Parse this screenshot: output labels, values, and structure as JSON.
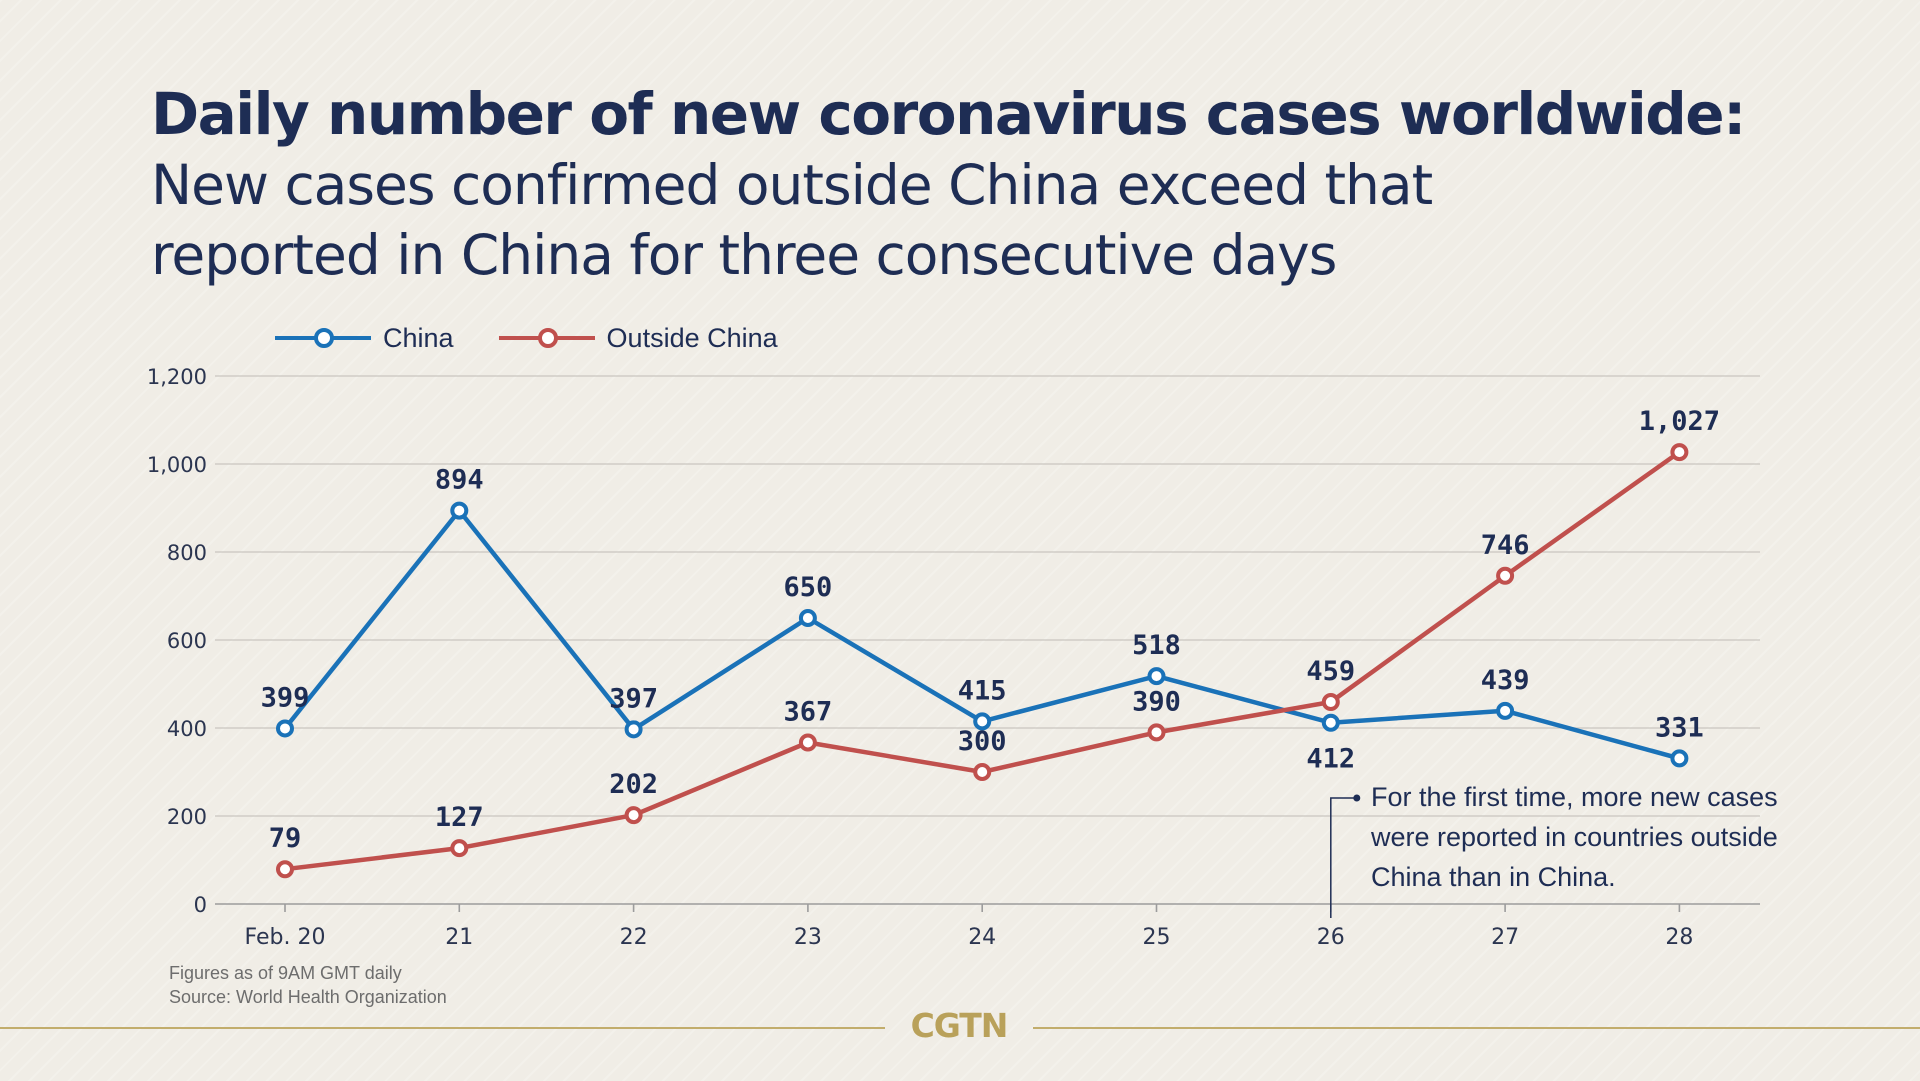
{
  "header": {
    "title": "Daily number of new coronavirus cases worldwide:",
    "subtitle": "New cases confirmed outside China exceed that reported in China for three consecutive days"
  },
  "legend": {
    "items": [
      {
        "label": "China",
        "color": "#1a72b8"
      },
      {
        "label": "Outside China",
        "color": "#c0504d"
      }
    ]
  },
  "annotation": {
    "text": "For the first time, more new cases were reported in countries outside China than in China."
  },
  "footnote": {
    "line1": "Figures as of 9AM GMT daily",
    "line2": "Source: World Health Organization"
  },
  "logo": {
    "text": "CGTN"
  },
  "chart_data": {
    "type": "line",
    "title": "Daily number of new coronavirus cases worldwide:",
    "subtitle": "New cases confirmed outside China exceed that reported in China for three consecutive days",
    "categories": [
      "Feb. 20",
      "21",
      "22",
      "23",
      "24",
      "25",
      "26",
      "27",
      "28"
    ],
    "series": [
      {
        "name": "China",
        "color": "#1a72b8",
        "values": [
          399,
          894,
          397,
          650,
          415,
          518,
          412,
          439,
          331
        ]
      },
      {
        "name": "Outside China",
        "color": "#c0504d",
        "values": [
          79,
          127,
          202,
          367,
          300,
          390,
          459,
          746,
          1027
        ]
      }
    ],
    "ylim": [
      0,
      1200
    ],
    "yticks": [
      0,
      200,
      400,
      600,
      800,
      1000,
      1200
    ],
    "ytick_labels": [
      "0",
      "200",
      "400",
      "600",
      "800",
      "1,000",
      "1,200"
    ],
    "data_labels": {
      "China": [
        "399",
        "894",
        "397",
        "650",
        "415",
        "518",
        "412",
        "439",
        "331"
      ],
      "Outside China": [
        "79",
        "127",
        "202",
        "367",
        "300",
        "390",
        "459",
        "746",
        "1,027"
      ]
    },
    "grid": true,
    "legend_position": "top-left",
    "xlabel": "",
    "ylabel": ""
  }
}
